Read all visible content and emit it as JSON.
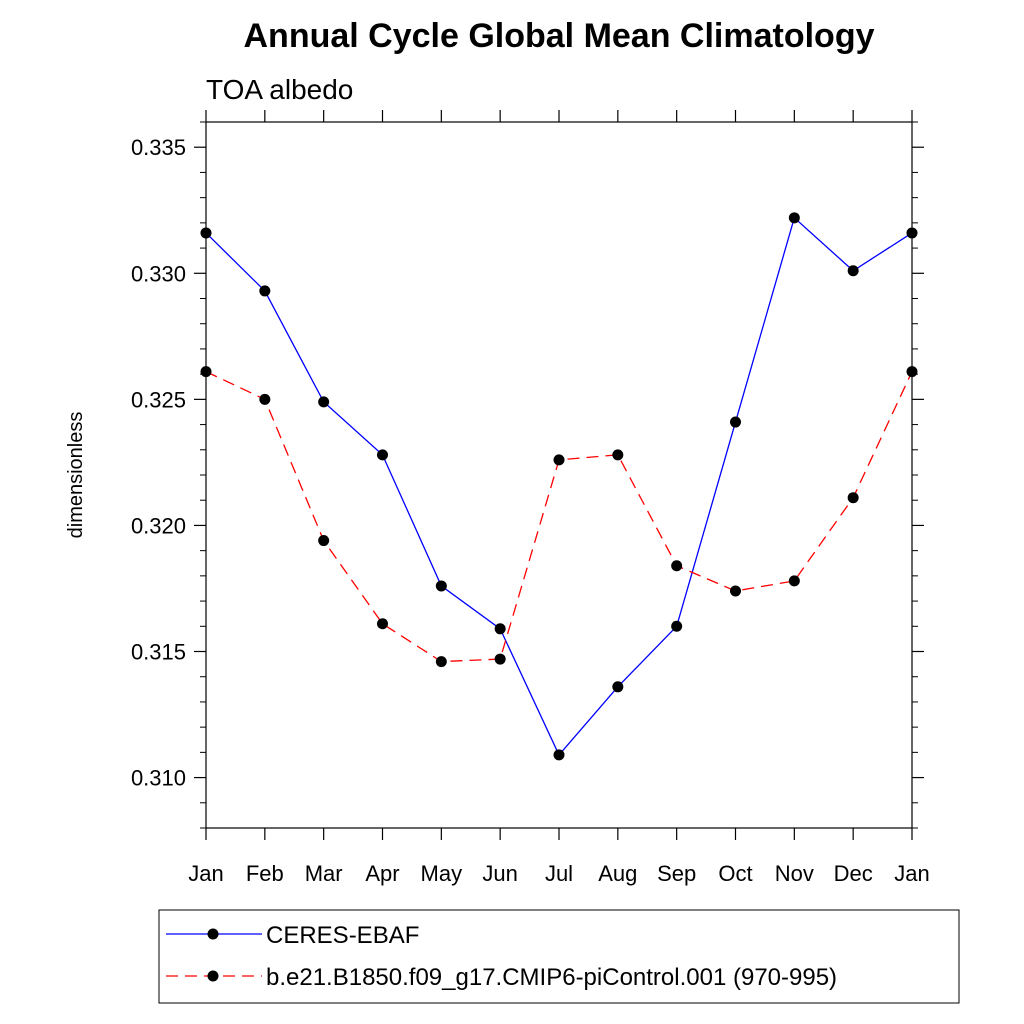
{
  "chart_data": {
    "type": "line",
    "title": "Annual Cycle Global Mean Climatology",
    "subtitle": "TOA albedo",
    "ylabel": "dimensionless",
    "xlabel": "",
    "categories": [
      "Jan",
      "Feb",
      "Mar",
      "Apr",
      "May",
      "Jun",
      "Jul",
      "Aug",
      "Sep",
      "Oct",
      "Nov",
      "Dec",
      "Jan"
    ],
    "ylim": [
      0.308,
      0.336
    ],
    "yticks": [
      "0.310",
      "0.315",
      "0.320",
      "0.325",
      "0.330",
      "0.335"
    ],
    "legend_position": "bottom",
    "grid": false,
    "series": [
      {
        "name": "CERES-EBAF",
        "color": "#0000ff",
        "line_style": "solid",
        "marker": "filled-circle",
        "values": [
          0.3316,
          0.3293,
          0.3249,
          0.3228,
          0.3176,
          0.3159,
          0.3109,
          0.3136,
          0.316,
          0.3241,
          0.3322,
          0.3301,
          0.3316
        ]
      },
      {
        "name": "b.e21.B1850.f09_g17.CMIP6-piControl.001 (970-995)",
        "color": "#ff0000",
        "line_style": "dashed",
        "marker": "filled-circle",
        "values": [
          0.3261,
          0.325,
          0.3194,
          0.3161,
          0.3146,
          0.3147,
          0.3226,
          0.3228,
          0.3184,
          0.3174,
          0.3178,
          0.3211,
          0.3261
        ]
      }
    ]
  }
}
